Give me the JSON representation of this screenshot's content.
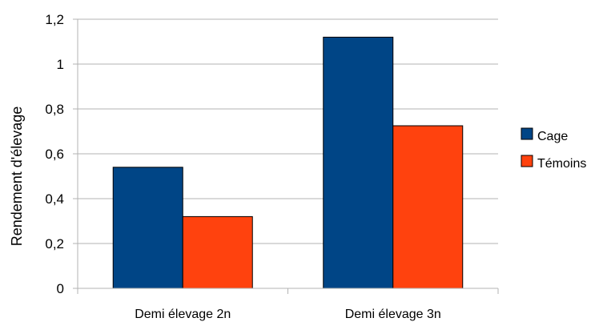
{
  "chart_data": {
    "type": "bar",
    "title": "",
    "xlabel": "",
    "ylabel": "Rendement d'élevage",
    "categories": [
      "Demi élevage 2n",
      "Demi élevage 3n"
    ],
    "series": [
      {
        "name": "Cage",
        "values": [
          0.54,
          1.12
        ],
        "color": "#004586"
      },
      {
        "name": "Témoins",
        "values": [
          0.32,
          0.725
        ],
        "color": "#ff420e"
      }
    ],
    "ylim": [
      0,
      1.2
    ],
    "yticks": [
      "0",
      "0,2",
      "0,4",
      "0,6",
      "0,8",
      "1",
      "1,2"
    ],
    "grid": true,
    "legend": "right"
  }
}
